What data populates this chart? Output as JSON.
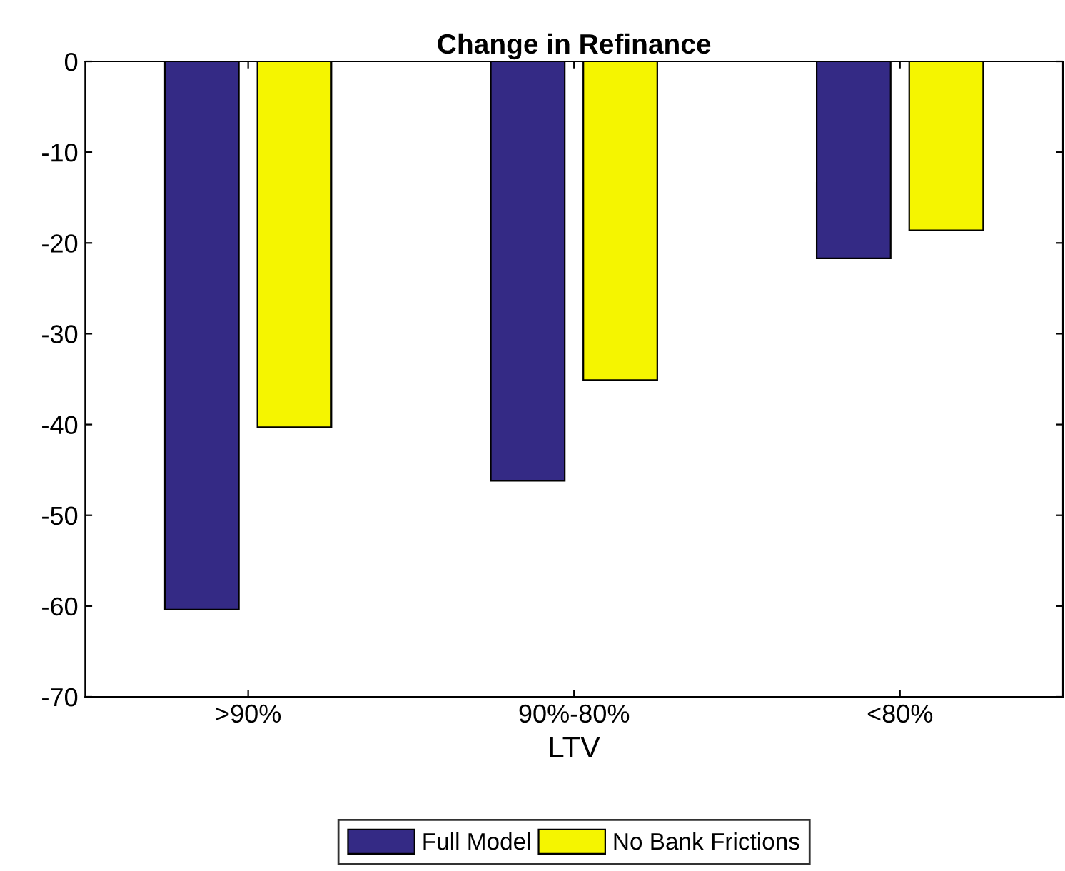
{
  "chart_data": {
    "type": "bar",
    "title": "Change in Refinance",
    "xlabel": "LTV",
    "categories": [
      ">90%",
      "90%-80%",
      "<80%"
    ],
    "series": [
      {
        "name": "Full Model",
        "color": "#342a85",
        "values": [
          -60.4,
          -46.2,
          -21.7
        ]
      },
      {
        "name": "No Bank Frictions",
        "color": "#f5f500",
        "values": [
          -40.3,
          -35.1,
          -18.6
        ]
      }
    ],
    "ylim": [
      -70,
      0
    ],
    "yticks": [
      -70,
      -60,
      -50,
      -40,
      -30,
      -20,
      -10,
      0
    ],
    "grid": false,
    "legend": "bottom"
  }
}
